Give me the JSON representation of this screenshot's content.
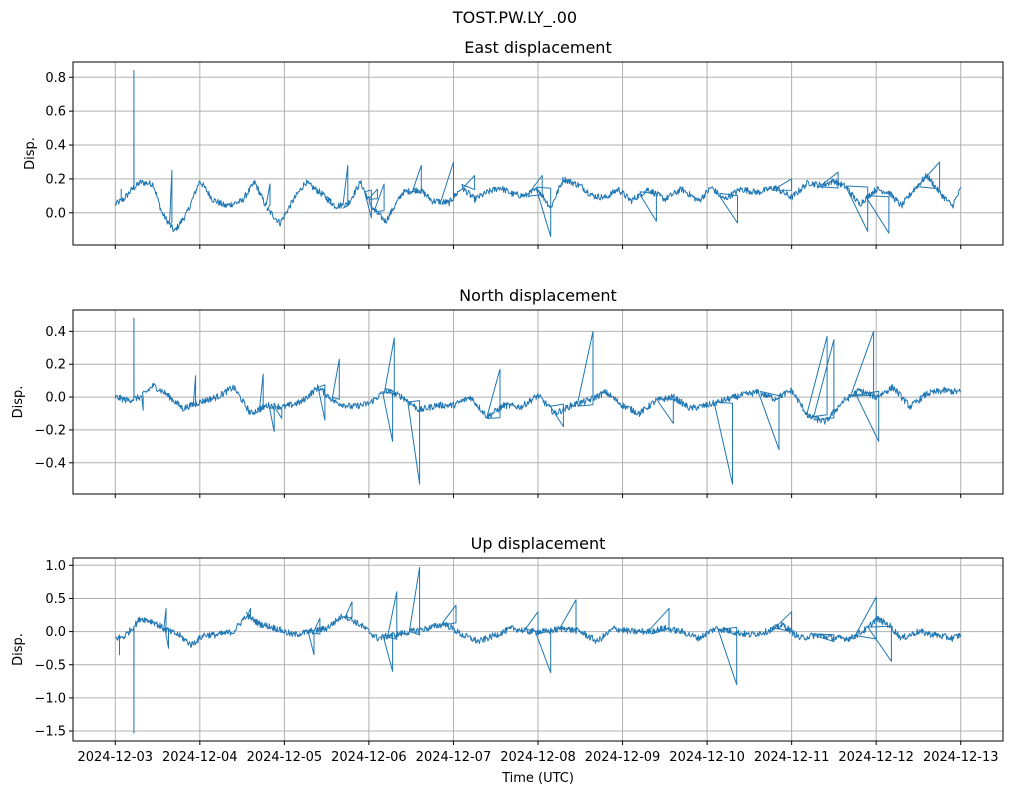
{
  "chart_data": {
    "type": "line",
    "suptitle": "TOST.PW.LY_.00",
    "xlabel": "Time (UTC)",
    "x_ticks": [
      "2024-12-03",
      "2024-12-04",
      "2024-12-05",
      "2024-12-06",
      "2024-12-07",
      "2024-12-08",
      "2024-12-09",
      "2024-12-10",
      "2024-12-11",
      "2024-12-12",
      "2024-12-13"
    ],
    "xlim_days": [
      -0.5,
      10.5
    ],
    "x_start": "2024-12-03",
    "x_end": "2024-12-13",
    "line_color": "#1f77b4",
    "grid": true,
    "panels": [
      {
        "title": "East displacement",
        "ylabel": "Disp.",
        "ylim": [
          -0.19,
          0.89
        ],
        "y_ticks": [
          0.0,
          0.2,
          0.4,
          0.6,
          0.8
        ],
        "y_tick_labels": [
          "0.0",
          "0.2",
          "0.4",
          "0.6",
          "0.8"
        ],
        "show_x_tick_labels": false,
        "x_days": [
          0,
          0.1,
          0.2,
          0.3,
          0.45,
          0.55,
          0.7,
          0.85,
          1.0,
          1.15,
          1.3,
          1.5,
          1.65,
          1.8,
          1.95,
          2.1,
          2.25,
          2.45,
          2.6,
          2.75,
          2.9,
          3.05,
          3.2,
          3.4,
          3.6,
          3.75,
          3.95,
          4.1,
          4.25,
          4.4,
          4.55,
          4.7,
          4.85,
          5.0,
          5.15,
          5.3,
          5.5,
          5.65,
          5.8,
          5.95,
          6.1,
          6.3,
          6.5,
          6.7,
          6.9,
          7.05,
          7.2,
          7.4,
          7.6,
          7.8,
          8.0,
          8.2,
          8.35,
          8.5,
          8.65,
          8.8,
          9.0,
          9.15,
          9.3,
          9.45,
          9.6,
          9.75,
          9.9,
          10.0
        ],
        "values": [
          0.05,
          0.08,
          0.14,
          0.18,
          0.17,
          0.0,
          -0.11,
          0.0,
          0.19,
          0.08,
          0.04,
          0.07,
          0.18,
          0.02,
          -0.06,
          0.07,
          0.18,
          0.11,
          0.04,
          0.05,
          0.18,
          0.02,
          -0.05,
          0.12,
          0.14,
          0.07,
          0.06,
          0.15,
          0.08,
          0.12,
          0.15,
          0.11,
          0.1,
          0.14,
          0.03,
          0.2,
          0.16,
          0.1,
          0.09,
          0.14,
          0.07,
          0.14,
          0.08,
          0.14,
          0.07,
          0.15,
          0.08,
          0.14,
          0.12,
          0.15,
          0.09,
          0.18,
          0.16,
          0.19,
          0.15,
          0.05,
          0.14,
          0.12,
          0.04,
          0.14,
          0.22,
          0.12,
          0.04,
          0.14
        ],
        "spikes": [
          [
            0.22,
            0.84
          ],
          [
            0.07,
            0.14
          ],
          [
            0.67,
            0.25
          ],
          [
            1.83,
            0.17
          ],
          [
            2.75,
            0.28
          ],
          [
            2.55,
            0.05
          ],
          [
            3.03,
            -0.03
          ],
          [
            3.1,
            0.14
          ],
          [
            3.62,
            0.28
          ],
          [
            3.18,
            0.17
          ],
          [
            4.0,
            0.3
          ],
          [
            4.25,
            0.22
          ],
          [
            5.15,
            -0.14
          ],
          [
            5.05,
            0.22
          ],
          [
            6.4,
            -0.05
          ],
          [
            7.36,
            -0.06
          ],
          [
            8.0,
            0.2
          ],
          [
            8.55,
            0.24
          ],
          [
            8.9,
            -0.11
          ],
          [
            9.15,
            -0.12
          ],
          [
            9.75,
            0.3
          ]
        ]
      },
      {
        "title": "North displacement",
        "ylabel": "Disp.",
        "ylim": [
          -0.59,
          0.53
        ],
        "y_ticks": [
          -0.4,
          -0.2,
          0.0,
          0.2,
          0.4
        ],
        "y_tick_labels": [
          "−0.4",
          "−0.2",
          "0.0",
          "0.2",
          "0.4"
        ],
        "show_x_tick_labels": false,
        "x_days": [
          0,
          0.15,
          0.3,
          0.45,
          0.6,
          0.8,
          1.0,
          1.2,
          1.4,
          1.6,
          1.8,
          2.0,
          2.2,
          2.4,
          2.6,
          2.8,
          3.0,
          3.2,
          3.4,
          3.6,
          3.8,
          4.0,
          4.2,
          4.4,
          4.6,
          4.8,
          5.0,
          5.2,
          5.4,
          5.6,
          5.8,
          6.0,
          6.2,
          6.4,
          6.6,
          6.8,
          7.0,
          7.2,
          7.4,
          7.6,
          7.8,
          8.0,
          8.2,
          8.4,
          8.6,
          8.8,
          9.0,
          9.2,
          9.4,
          9.6,
          9.8,
          10.0
        ],
        "values": [
          0.0,
          -0.02,
          0.0,
          0.07,
          0.02,
          -0.07,
          -0.03,
          0.0,
          0.06,
          -0.1,
          -0.05,
          -0.06,
          -0.03,
          0.06,
          -0.03,
          -0.06,
          -0.04,
          0.04,
          0.0,
          -0.08,
          -0.05,
          -0.05,
          0.0,
          -0.12,
          -0.05,
          -0.06,
          0.01,
          -0.1,
          -0.05,
          -0.02,
          0.03,
          -0.05,
          -0.1,
          -0.02,
          0.0,
          -0.07,
          -0.05,
          -0.02,
          0.01,
          0.03,
          -0.01,
          0.04,
          -0.12,
          -0.15,
          -0.03,
          0.04,
          0.0,
          0.06,
          -0.06,
          0.02,
          0.04,
          0.03
        ],
        "spikes": [
          [
            0.22,
            0.48
          ],
          [
            0.33,
            -0.08
          ],
          [
            0.95,
            0.13
          ],
          [
            1.75,
            0.14
          ],
          [
            1.88,
            -0.21
          ],
          [
            1.97,
            -0.13
          ],
          [
            2.65,
            0.23
          ],
          [
            2.48,
            -0.14
          ],
          [
            3.3,
            0.36
          ],
          [
            3.28,
            -0.27
          ],
          [
            3.6,
            -0.53
          ],
          [
            4.55,
            0.17
          ],
          [
            5.3,
            -0.18
          ],
          [
            5.65,
            0.4
          ],
          [
            6.6,
            -0.16
          ],
          [
            7.3,
            -0.53
          ],
          [
            7.85,
            -0.32
          ],
          [
            8.5,
            0.35
          ],
          [
            8.42,
            0.37
          ],
          [
            8.97,
            0.4
          ],
          [
            9.03,
            -0.27
          ]
        ]
      },
      {
        "title": "Up displacement",
        "ylabel": "Disp.",
        "ylim": [
          -1.65,
          1.11
        ],
        "y_ticks": [
          -1.5,
          -1.0,
          -0.5,
          0.0,
          0.5,
          1.0
        ],
        "y_tick_labels": [
          "−1.5",
          "−1.0",
          "−0.5",
          "0.0",
          "0.5",
          "1.0"
        ],
        "show_x_tick_labels": true,
        "x_days": [
          0,
          0.1,
          0.2,
          0.3,
          0.45,
          0.6,
          0.75,
          0.9,
          1.05,
          1.2,
          1.4,
          1.55,
          1.7,
          1.9,
          2.1,
          2.3,
          2.5,
          2.7,
          2.9,
          3.1,
          3.3,
          3.5,
          3.7,
          3.9,
          4.1,
          4.3,
          4.5,
          4.7,
          4.9,
          5.1,
          5.3,
          5.5,
          5.7,
          5.9,
          6.1,
          6.3,
          6.5,
          6.7,
          6.9,
          7.1,
          7.3,
          7.5,
          7.7,
          7.9,
          8.1,
          8.3,
          8.5,
          8.7,
          8.9,
          9.0,
          9.15,
          9.3,
          9.5,
          9.7,
          9.9,
          10.0
        ],
        "values": [
          -0.1,
          -0.08,
          0.05,
          0.2,
          0.15,
          0.02,
          -0.05,
          -0.2,
          -0.05,
          -0.05,
          0.0,
          0.25,
          0.12,
          0.05,
          -0.05,
          0.0,
          0.05,
          0.25,
          0.1,
          -0.1,
          -0.05,
          0.0,
          0.05,
          0.12,
          -0.05,
          -0.15,
          -0.05,
          0.05,
          0.0,
          0.0,
          0.05,
          0.0,
          -0.15,
          0.05,
          0.0,
          0.0,
          0.05,
          0.0,
          -0.1,
          0.05,
          0.0,
          -0.05,
          0.0,
          0.1,
          -0.1,
          -0.05,
          -0.1,
          -0.1,
          0.05,
          0.2,
          0.1,
          -0.1,
          0.0,
          -0.05,
          -0.1,
          -0.05
        ],
        "spikes": [
          [
            0.22,
            -1.53
          ],
          [
            0.05,
            -0.35
          ],
          [
            0.6,
            0.35
          ],
          [
            0.63,
            -0.25
          ],
          [
            1.6,
            0.35
          ],
          [
            2.35,
            -0.35
          ],
          [
            2.8,
            0.45
          ],
          [
            2.42,
            0.2
          ],
          [
            3.33,
            0.6
          ],
          [
            3.6,
            0.97
          ],
          [
            3.28,
            -0.6
          ],
          [
            4.03,
            0.4
          ],
          [
            5.0,
            0.3
          ],
          [
            5.15,
            -0.62
          ],
          [
            5.45,
            0.48
          ],
          [
            6.55,
            0.35
          ],
          [
            7.35,
            -0.8
          ],
          [
            8.0,
            0.3
          ],
          [
            8.5,
            -0.15
          ],
          [
            9.0,
            0.52
          ],
          [
            9.18,
            -0.45
          ]
        ]
      }
    ]
  }
}
